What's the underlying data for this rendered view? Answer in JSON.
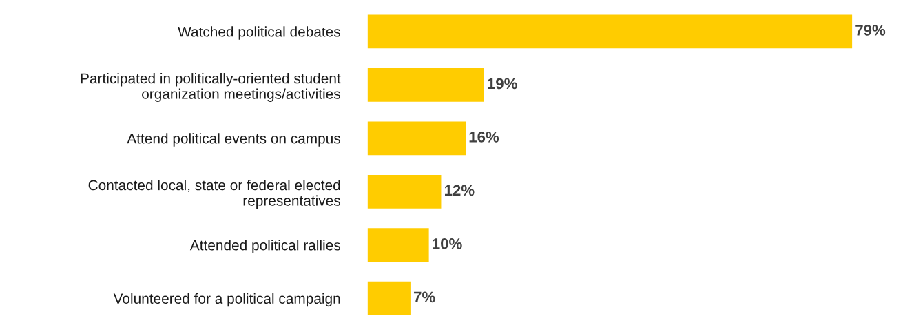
{
  "chart_data": {
    "type": "bar",
    "orientation": "horizontal",
    "categories": [
      "Watched political debates",
      "Participated in politically-oriented student\norganization meetings/activities",
      "Attend political events on campus",
      "Contacted local, state or federal elected\nrepresentatives",
      "Attended political rallies",
      "Volunteered for a political campaign"
    ],
    "values": [
      79,
      19,
      16,
      12,
      10,
      7
    ],
    "value_labels": [
      "79%",
      "19%",
      "16%",
      "12%",
      "10%",
      "7%"
    ],
    "color": "#ffcc00"
  }
}
